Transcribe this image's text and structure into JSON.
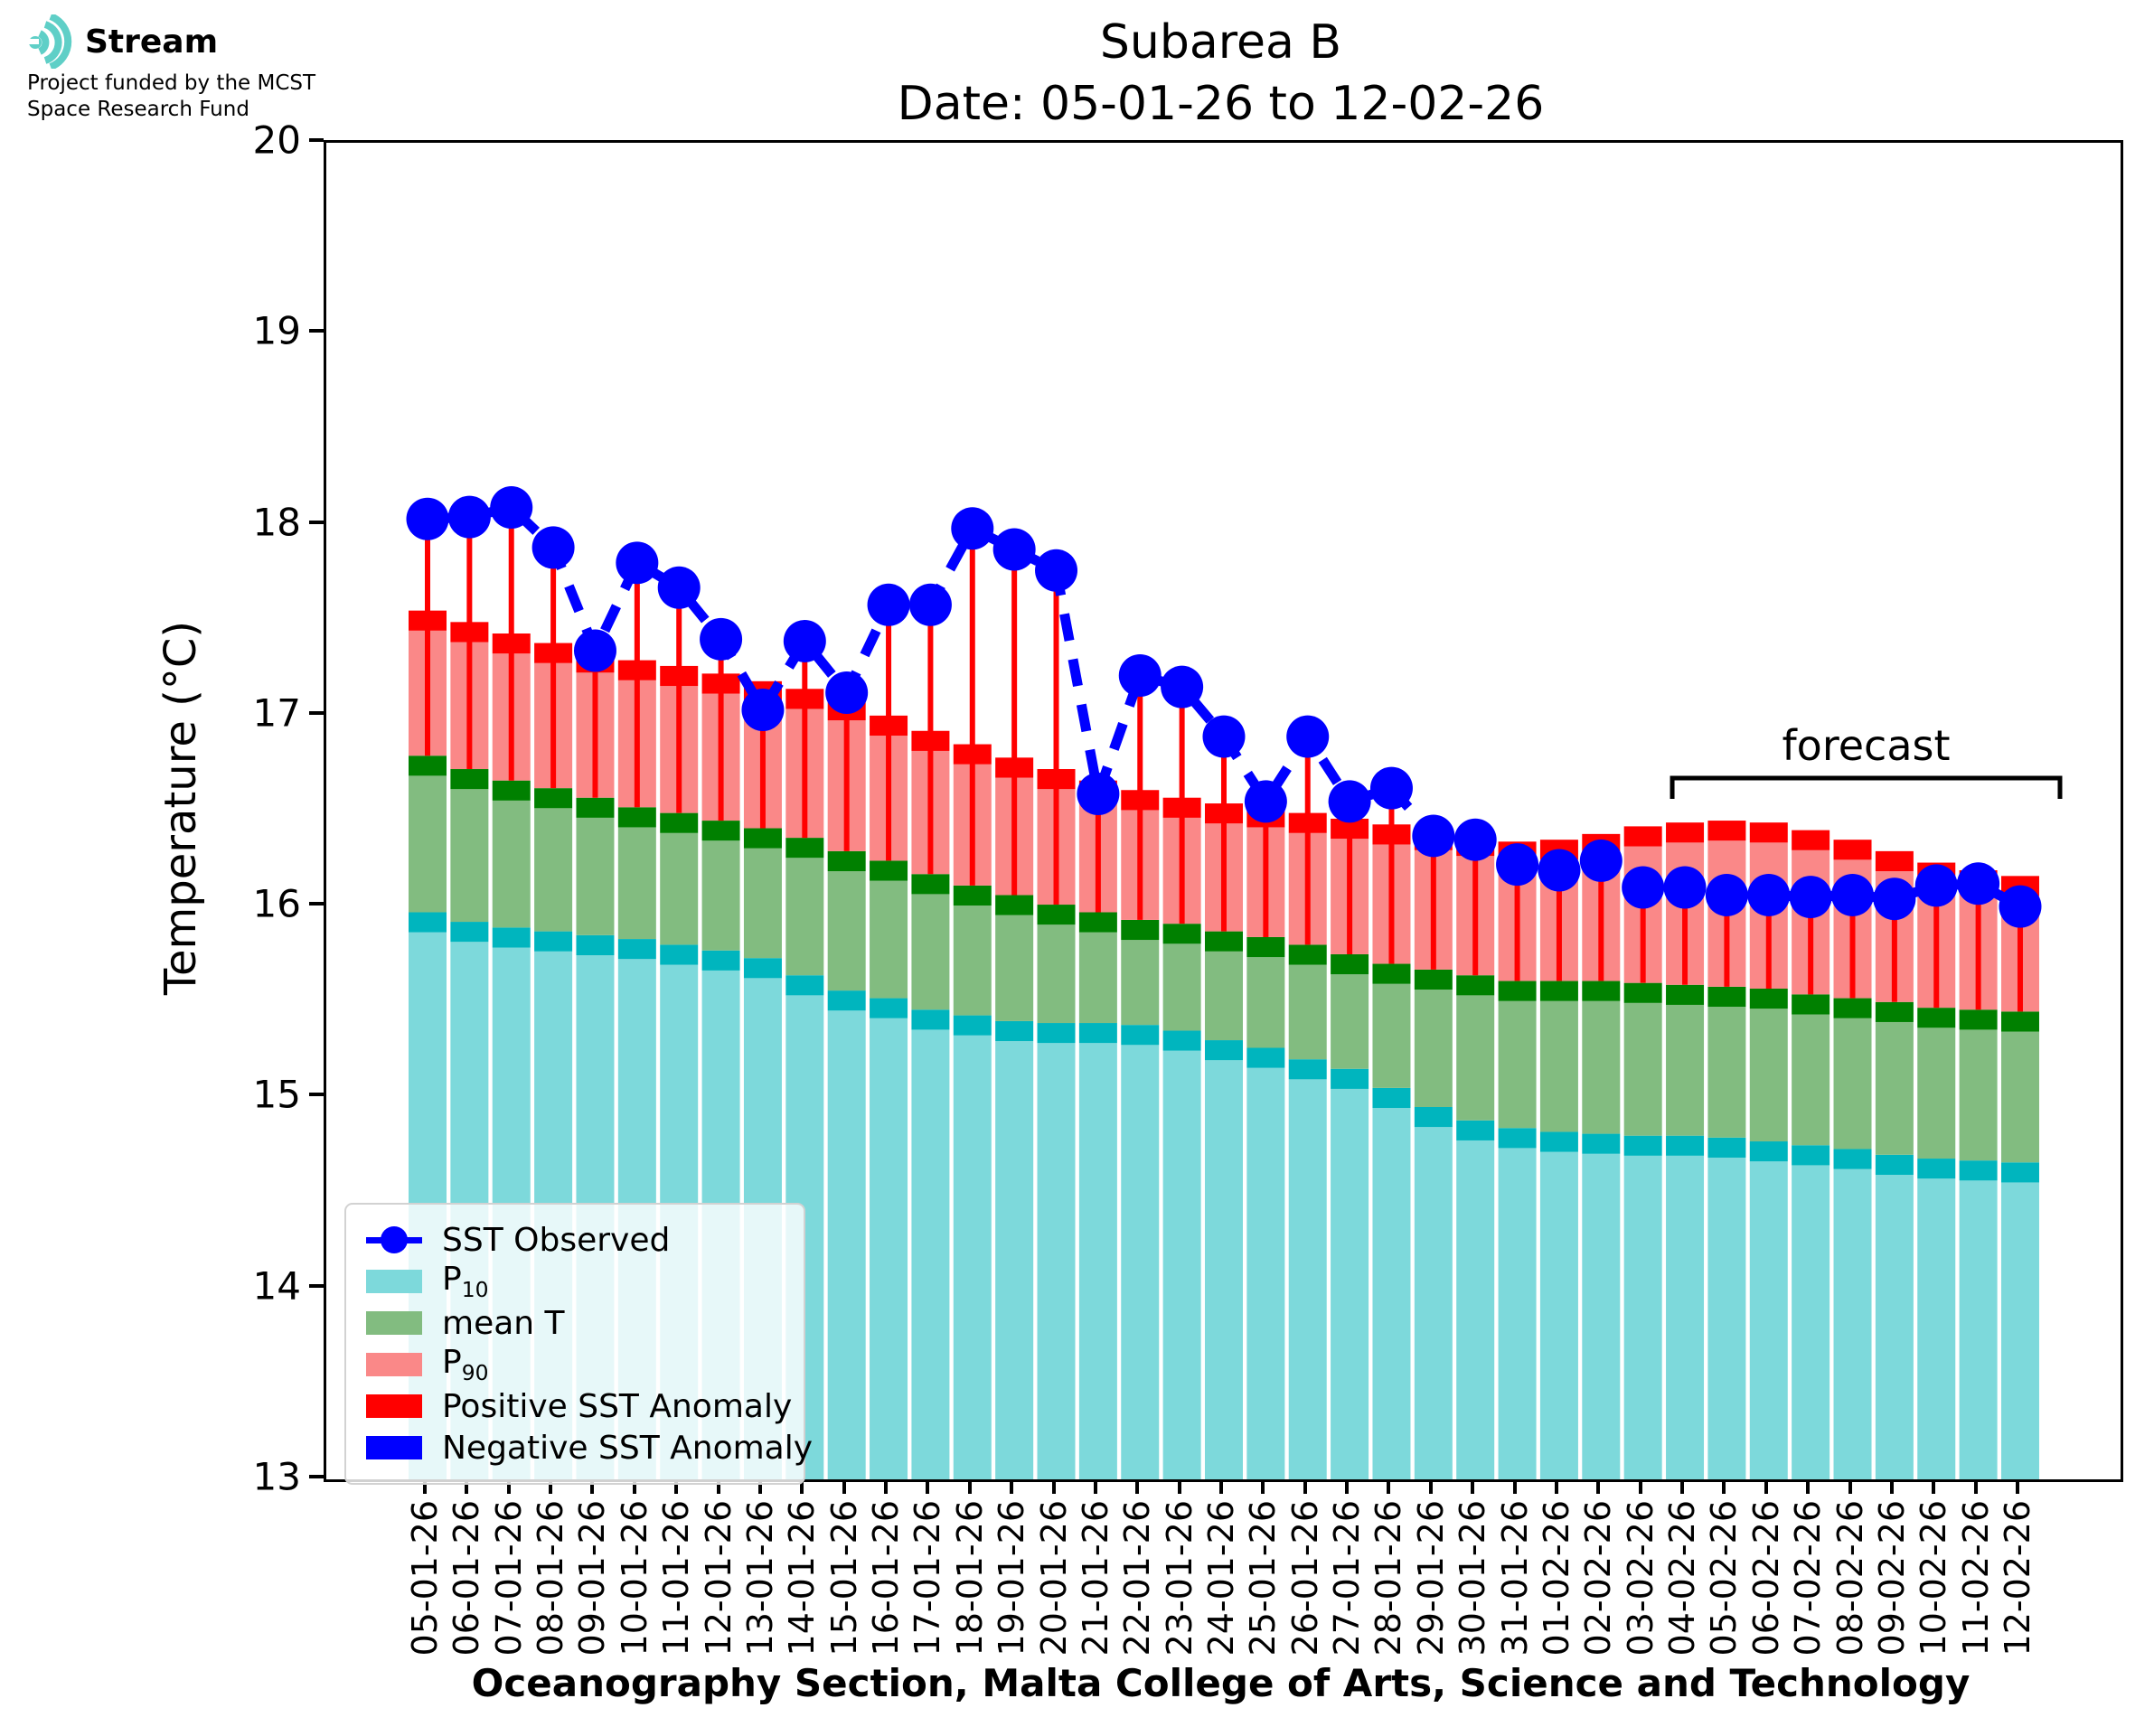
{
  "logo": {
    "brand": "Stream",
    "tagline_line1": "Project funded by the MCST",
    "tagline_line2": "Space Research Fund",
    "icon_color": "#5FCFC7"
  },
  "title": {
    "line1": "Subarea B",
    "line2": "Date: 05-01-26 to 12-02-26"
  },
  "axes": {
    "ylabel": "Temperature (°C)",
    "yticks": [
      20,
      19,
      18,
      17,
      16,
      15,
      14,
      13
    ],
    "ymin": 13,
    "ymax": 20,
    "xlabel": "Oceanography Section, Malta College of Arts, Science and Technology"
  },
  "forecast": {
    "label": "forecast",
    "start_date": "04-02-26",
    "end_date": "12-02-26"
  },
  "legend": [
    {
      "key": "sst-observed",
      "label": "SST Observed",
      "swatch": "line-dot",
      "color": "#0000FF"
    },
    {
      "key": "p10",
      "label": "P10",
      "label_base": "P",
      "label_sub": "10",
      "swatch": "patch",
      "color": "#7DD9DB"
    },
    {
      "key": "mean-t",
      "label": "mean T",
      "swatch": "patch",
      "color": "#82BC80"
    },
    {
      "key": "p90",
      "label": "P90",
      "label_base": "P",
      "label_sub": "90",
      "swatch": "patch",
      "color": "#FA8888"
    },
    {
      "key": "positive-sst-anomaly",
      "label": "Positive SST Anomaly",
      "swatch": "patch",
      "color": "#FF0000"
    },
    {
      "key": "negative-sst-anomaly",
      "label": "Negative SST Anomaly",
      "swatch": "patch",
      "color": "#0000FF"
    }
  ],
  "chart_data": {
    "type": "bar",
    "title": "Subarea B — Date: 05-01-26 to 12-02-26",
    "ylabel": "Temperature (°C)",
    "ylim": [
      13,
      20
    ],
    "grid": false,
    "legend_position": "lower-left",
    "x": [
      "05-01-26",
      "06-01-26",
      "07-01-26",
      "08-01-26",
      "09-01-26",
      "10-01-26",
      "11-01-26",
      "12-01-26",
      "13-01-26",
      "14-01-26",
      "15-01-26",
      "16-01-26",
      "17-01-26",
      "18-01-26",
      "19-01-26",
      "20-01-26",
      "21-01-26",
      "22-01-26",
      "23-01-26",
      "24-01-26",
      "25-01-26",
      "26-01-26",
      "27-01-26",
      "28-01-26",
      "29-01-26",
      "30-01-26",
      "31-01-26",
      "01-02-26",
      "02-02-26",
      "03-02-26",
      "04-02-26",
      "05-02-26",
      "06-02-26",
      "07-02-26",
      "08-02-26",
      "09-02-26",
      "10-02-26",
      "11-02-26",
      "12-02-26"
    ],
    "forecast_start_index": 30,
    "series": [
      {
        "name": "P10",
        "fill_color": "#7DD9DB",
        "cap_color": "#00B5BE",
        "values": [
          15.97,
          15.92,
          15.89,
          15.87,
          15.85,
          15.83,
          15.8,
          15.77,
          15.73,
          15.64,
          15.56,
          15.52,
          15.46,
          15.43,
          15.4,
          15.39,
          15.39,
          15.38,
          15.35,
          15.3,
          15.26,
          15.2,
          15.15,
          15.05,
          14.95,
          14.88,
          14.84,
          14.82,
          14.81,
          14.8,
          14.8,
          14.79,
          14.77,
          14.75,
          14.73,
          14.7,
          14.68,
          14.67,
          14.66
        ]
      },
      {
        "name": "mean T",
        "fill_color": "#82BC80",
        "cap_color": "#008000",
        "values": [
          16.79,
          16.72,
          16.66,
          16.62,
          16.57,
          16.52,
          16.49,
          16.45,
          16.41,
          16.36,
          16.29,
          16.24,
          16.17,
          16.11,
          16.06,
          16.01,
          15.97,
          15.93,
          15.91,
          15.87,
          15.84,
          15.8,
          15.75,
          15.7,
          15.67,
          15.64,
          15.61,
          15.61,
          15.61,
          15.6,
          15.59,
          15.58,
          15.57,
          15.54,
          15.52,
          15.5,
          15.47,
          15.46,
          15.45
        ]
      },
      {
        "name": "P90",
        "fill_color": "#FA8888",
        "cap_color": "#FF0000",
        "values": [
          17.55,
          17.49,
          17.43,
          17.38,
          17.33,
          17.29,
          17.26,
          17.22,
          17.18,
          17.14,
          17.08,
          17.0,
          16.92,
          16.85,
          16.78,
          16.72,
          16.66,
          16.61,
          16.57,
          16.54,
          16.52,
          16.49,
          16.46,
          16.43,
          16.4,
          16.37,
          16.34,
          16.35,
          16.38,
          16.42,
          16.44,
          16.45,
          16.44,
          16.4,
          16.35,
          16.29,
          16.23,
          16.19,
          16.16
        ]
      },
      {
        "name": "SST Observed",
        "color": "#0000FF",
        "style": "dashed-line-markers",
        "values": [
          18.03,
          18.04,
          18.09,
          17.88,
          17.34,
          17.8,
          17.67,
          17.4,
          17.03,
          17.39,
          17.12,
          17.58,
          17.58,
          17.98,
          17.87,
          17.76,
          16.59,
          17.21,
          17.15,
          16.89,
          16.55,
          16.89,
          16.55,
          16.62,
          16.37,
          16.35,
          16.22,
          16.19,
          16.24,
          16.1,
          16.1,
          16.06,
          16.06,
          16.05,
          16.06,
          16.04,
          16.11,
          16.12,
          16.0
        ]
      }
    ],
    "anomaly_stems": {
      "color_positive": "#FF0000",
      "color_negative": "#0000FF",
      "from": "mean T",
      "to": "SST Observed"
    }
  }
}
